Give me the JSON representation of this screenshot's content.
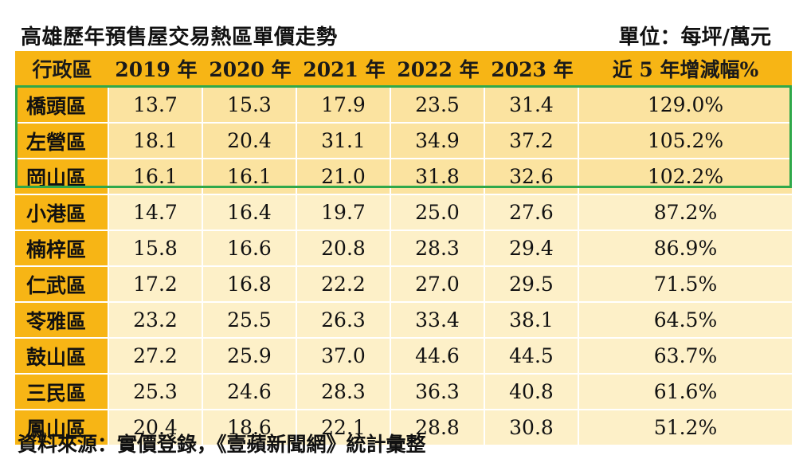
{
  "title": "高雄歷年預售屋交易熱區單價走勢",
  "unit": "單位：每坪/萬元",
  "source": "資料來源：實價登錄，《壹蘋新聞網》統計彙整",
  "headers": [
    "行政區",
    "2019 年",
    "2020 年",
    "2021 年",
    "2022 年",
    "2023 年",
    "近 5 年增減幅%"
  ],
  "rows": [
    [
      "橋頭區",
      "13.7",
      "15.3",
      "17.9",
      "23.5",
      "31.4",
      "129.0%"
    ],
    [
      "左營區",
      "18.1",
      "20.4",
      "31.1",
      "34.9",
      "37.2",
      "105.2%"
    ],
    [
      "岡山區",
      "16.1",
      "16.1",
      "21.0",
      "31.8",
      "32.6",
      "102.2%"
    ],
    [
      "小港區",
      "14.7",
      "16.4",
      "19.7",
      "25.0",
      "27.6",
      "87.2%"
    ],
    [
      "楠梓區",
      "15.8",
      "16.6",
      "20.8",
      "28.3",
      "29.4",
      "86.9%"
    ],
    [
      "仁武區",
      "17.2",
      "16.8",
      "22.2",
      "27.0",
      "29.5",
      "71.5%"
    ],
    [
      "苓雅區",
      "23.2",
      "25.5",
      "26.3",
      "33.4",
      "38.1",
      "64.5%"
    ],
    [
      "鼓山區",
      "27.2",
      "25.9",
      "37.0",
      "44.6",
      "44.5",
      "63.7%"
    ],
    [
      "三民區",
      "25.3",
      "24.6",
      "28.3",
      "36.3",
      "40.8",
      "61.6%"
    ],
    [
      "鳳山區",
      "20.4",
      "18.6",
      "22.1",
      "28.8",
      "30.8",
      "51.2%"
    ]
  ],
  "highlight_color": "#2fa84a",
  "header_color": "#f7b515",
  "row_color": "#fdf0c8"
}
